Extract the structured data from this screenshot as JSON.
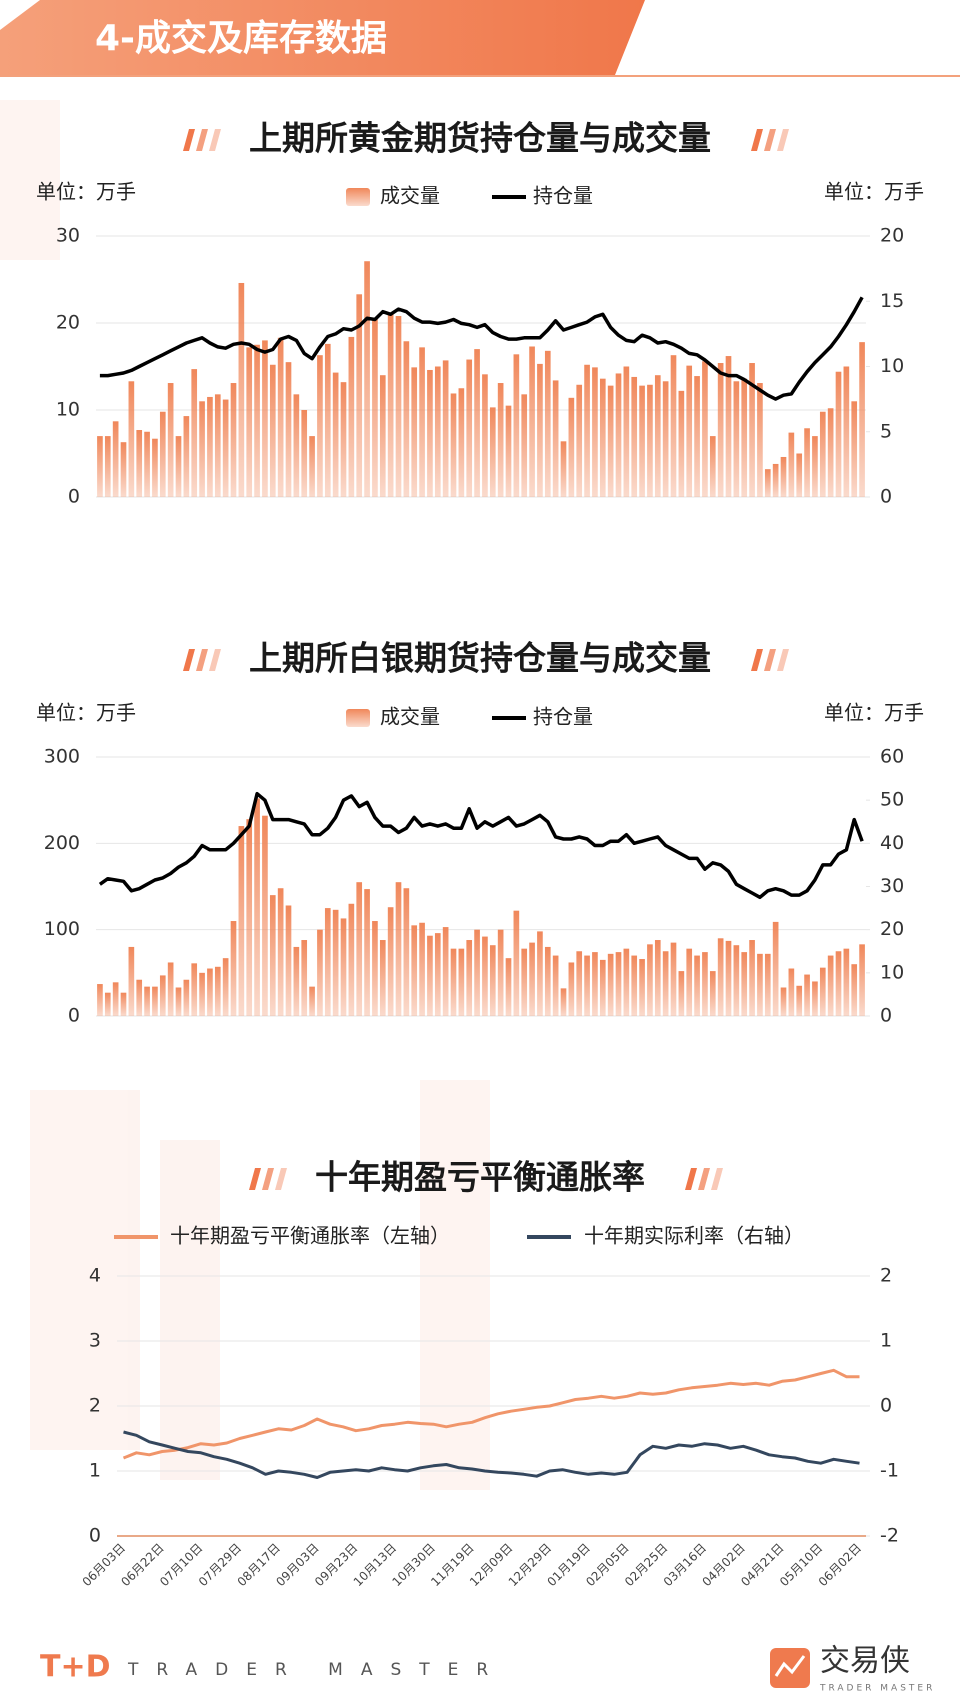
{
  "header": {
    "title": "4-成交及库存数据"
  },
  "footer": {
    "brand": "T+D",
    "slogan": "TRADER MASTER",
    "logo_text": "交易侠",
    "logo_sub": "TRADER MASTER"
  },
  "chart_data": [
    {
      "type": "bar",
      "title": "上期所黄金期货持仓量与成交量",
      "y_label": "单位：万手",
      "y2_label": "单位：万手",
      "ylim": [
        0,
        30
      ],
      "yticks": [
        0,
        10,
        20,
        30
      ],
      "y2lim": [
        0,
        20
      ],
      "y2ticks": [
        0,
        5,
        10,
        15,
        20
      ],
      "grid": true,
      "series": [
        {
          "name": "成交量",
          "type": "bar",
          "color": "#f0875a",
          "values": [
            7,
            7,
            8.7,
            6.3,
            13.3,
            7.7,
            7.5,
            6.7,
            9.8,
            13.1,
            7,
            9.3,
            14.7,
            11,
            11.5,
            11.8,
            11.2,
            13.1,
            24.6,
            17.2,
            17.5,
            18,
            15.2,
            18.3,
            15.5,
            11.8,
            10,
            7,
            16.3,
            17.6,
            14.3,
            13.2,
            18.4,
            23.3,
            27.1,
            20.5,
            14,
            21,
            20.8,
            17.9,
            14.9,
            17.2,
            14.6,
            15,
            15.7,
            11.9,
            12.5,
            15.8,
            17,
            14.1,
            10.3,
            13.1,
            10.5,
            16.4,
            11.8,
            17.3,
            15.3,
            16.8,
            13.4,
            6.4,
            11.4,
            12.9,
            15.2,
            14.9,
            13.6,
            12.8,
            14.2,
            15,
            13.8,
            12.8,
            12.9,
            14,
            13.3,
            16.3,
            12.2,
            15.1,
            13.9,
            15.6,
            7,
            15.4,
            16.2,
            13.3,
            13.6,
            15.4,
            13.1,
            3.2,
            3.8,
            4.6,
            7.4,
            5,
            7.9,
            7,
            9.8,
            10.2,
            14.4,
            15,
            11,
            17.8
          ]
        },
        {
          "name": "持仓量",
          "type": "line",
          "axis": "y2",
          "color": "#000000",
          "values": [
            9.3,
            9.3,
            9.4,
            9.5,
            9.7,
            10,
            10.3,
            10.6,
            10.9,
            11.2,
            11.5,
            11.8,
            12,
            12.2,
            11.8,
            11.5,
            11.4,
            11.7,
            11.8,
            11.7,
            11.3,
            11.1,
            11.3,
            12.1,
            12.3,
            12,
            11,
            10.6,
            11.5,
            12.3,
            12.5,
            12.9,
            12.8,
            13.1,
            13.7,
            13.6,
            14.2,
            14,
            14.4,
            14.2,
            13.7,
            13.4,
            13.4,
            13.3,
            13.4,
            13.6,
            13.3,
            13.2,
            13,
            13.2,
            12.6,
            12.3,
            12.1,
            12.1,
            12.2,
            12.2,
            12.2,
            12.8,
            13.5,
            12.8,
            13,
            13.2,
            13.4,
            13.8,
            14,
            13,
            12.4,
            12,
            11.9,
            12.4,
            12.2,
            11.8,
            11.9,
            11.7,
            11.4,
            11,
            10.9,
            10.5,
            10,
            9.5,
            9.3,
            9.3,
            9,
            8.6,
            8.2,
            7.8,
            7.5,
            7.8,
            7.9,
            8.8,
            9.6,
            10.3,
            10.9,
            11.5,
            12.3,
            13.2,
            14.2,
            15.3
          ]
        }
      ]
    },
    {
      "type": "bar",
      "title": "上期所白银期货持仓量与成交量",
      "y_label": "单位：万手",
      "y2_label": "单位：万手",
      "ylim": [
        0,
        300
      ],
      "yticks": [
        0,
        100,
        200,
        300
      ],
      "y2lim": [
        0,
        60
      ],
      "y2ticks": [
        0,
        10,
        20,
        30,
        40,
        50,
        60
      ],
      "grid": true,
      "series": [
        {
          "name": "成交量",
          "type": "bar",
          "color": "#f0875a",
          "values": [
            37,
            27,
            39,
            27,
            80,
            42,
            34,
            34,
            47,
            62,
            33,
            42,
            61,
            50,
            55,
            57,
            67,
            110,
            220,
            228,
            252,
            232,
            140,
            148,
            128,
            80,
            88,
            34,
            100,
            125,
            123,
            113,
            130,
            155,
            147,
            110,
            88,
            126,
            155,
            148,
            105,
            108,
            93,
            96,
            103,
            78,
            78,
            88,
            100,
            92,
            82,
            100,
            67,
            122,
            78,
            85,
            98,
            80,
            70,
            32,
            62,
            75,
            70,
            74,
            65,
            72,
            74,
            78,
            70,
            66,
            83,
            88,
            75,
            85,
            52,
            78,
            70,
            74,
            52,
            90,
            87,
            82,
            74,
            88,
            72,
            72,
            109,
            33,
            55,
            35,
            48,
            40,
            56,
            70,
            75,
            78,
            60,
            83
          ]
        },
        {
          "name": "持仓量",
          "type": "line",
          "axis": "y2",
          "color": "#000000",
          "values": [
            30.5,
            31.8,
            31.5,
            31.2,
            29,
            29.5,
            30.5,
            31.5,
            32,
            33,
            34.5,
            35.5,
            37,
            39.5,
            38.5,
            38.5,
            38.5,
            40,
            42,
            44,
            51.5,
            50,
            45.5,
            45.5,
            45.5,
            45,
            44.5,
            42,
            42,
            43.5,
            46,
            50,
            51,
            48.5,
            49.5,
            46,
            44,
            44,
            42.5,
            43.5,
            46,
            44,
            44.5,
            44,
            44.5,
            43.5,
            43.5,
            48,
            43.5,
            45,
            44,
            45,
            46,
            44,
            44.5,
            45.5,
            46.5,
            45,
            41.5,
            41,
            41,
            41.5,
            41,
            39.5,
            39.5,
            40.5,
            40.5,
            42,
            40,
            40.5,
            41,
            41.5,
            39.5,
            38.5,
            37.5,
            36.5,
            36.5,
            34,
            35.5,
            35,
            33.5,
            30.5,
            29.5,
            28.5,
            27.5,
            29,
            29.5,
            29,
            28,
            28,
            29,
            31.5,
            35,
            35,
            37.5,
            38.5,
            45.5,
            40.5
          ]
        }
      ]
    },
    {
      "type": "line",
      "title": "十年期盈亏平衡通胀率",
      "categories": [
        "06月03日",
        null,
        null,
        "06月22日",
        null,
        null,
        "07月10日",
        null,
        null,
        "07月29日",
        null,
        null,
        "08月17日",
        null,
        null,
        "09月03日",
        null,
        null,
        "09月23日",
        null,
        null,
        "10月13日",
        null,
        null,
        "10月30日",
        null,
        null,
        "11月19日",
        null,
        null,
        "12月09日",
        null,
        null,
        "12月29日",
        null,
        null,
        "01月19日",
        null,
        null,
        "02月05日",
        null,
        null,
        "02月25日",
        null,
        null,
        "03月16日",
        null,
        null,
        "04月02日",
        null,
        null,
        "04月21日",
        null,
        null,
        "05月10日",
        null,
        null,
        "06月02日"
      ],
      "ylim": [
        0,
        4
      ],
      "yticks": [
        0,
        1,
        2,
        3,
        4
      ],
      "y2lim": [
        -2,
        2
      ],
      "y2ticks": [
        -2,
        -1,
        0,
        1,
        2
      ],
      "grid": true,
      "series": [
        {
          "name": "十年期盈亏平衡通胀率（左轴）",
          "color": "#f0956a",
          "values": [
            1.2,
            1.28,
            1.25,
            1.3,
            1.32,
            1.36,
            1.42,
            1.4,
            1.43,
            1.5,
            1.55,
            1.6,
            1.65,
            1.63,
            1.7,
            1.8,
            1.72,
            1.68,
            1.62,
            1.65,
            1.7,
            1.72,
            1.75,
            1.73,
            1.72,
            1.68,
            1.72,
            1.75,
            1.82,
            1.88,
            1.92,
            1.95,
            1.98,
            2.0,
            2.05,
            2.1,
            2.12,
            2.15,
            2.12,
            2.15,
            2.2,
            2.18,
            2.2,
            2.25,
            2.28,
            2.3,
            2.32,
            2.35,
            2.33,
            2.35,
            2.32,
            2.38,
            2.4,
            2.45,
            2.5,
            2.55,
            2.45,
            2.45
          ]
        },
        {
          "name": "十年期实际利率（右轴）",
          "axis": "y2",
          "color": "#34475e",
          "values": [
            -0.4,
            -0.45,
            -0.55,
            -0.6,
            -0.65,
            -0.7,
            -0.72,
            -0.78,
            -0.82,
            -0.88,
            -0.95,
            -1.05,
            -1.0,
            -1.02,
            -1.05,
            -1.1,
            -1.02,
            -1.0,
            -0.98,
            -1.0,
            -0.95,
            -0.98,
            -1.0,
            -0.95,
            -0.92,
            -0.9,
            -0.95,
            -0.97,
            -1.0,
            -1.02,
            -1.03,
            -1.05,
            -1.08,
            -1.0,
            -0.98,
            -1.02,
            -1.05,
            -1.03,
            -1.05,
            -1.02,
            -0.75,
            -0.62,
            -0.65,
            -0.6,
            -0.62,
            -0.58,
            -0.6,
            -0.65,
            -0.62,
            -0.68,
            -0.75,
            -0.78,
            -0.8,
            -0.85,
            -0.88,
            -0.82,
            -0.85,
            -0.88
          ]
        }
      ]
    }
  ]
}
